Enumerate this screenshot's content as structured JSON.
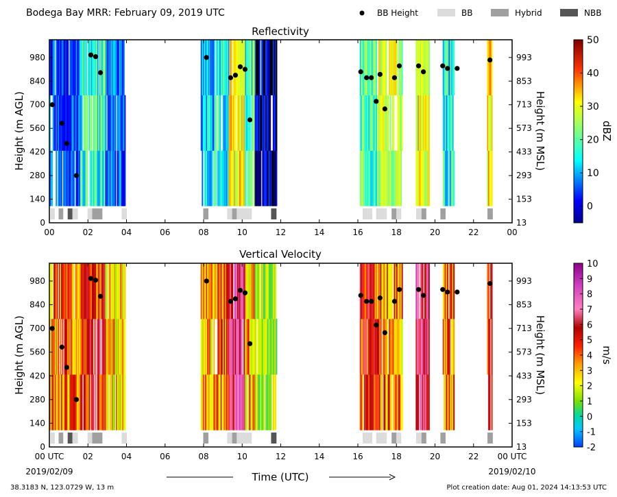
{
  "header": {
    "title": "Bodega Bay MRR:  February 09, 2019 UTC",
    "legend": [
      {
        "label": "BB Height",
        "kind": "dot",
        "color": "#000000"
      },
      {
        "label": "BB",
        "kind": "box",
        "color": "#dcdcdc"
      },
      {
        "label": "Hybrid",
        "kind": "box",
        "color": "#a0a0a0"
      },
      {
        "label": "NBB",
        "kind": "box",
        "color": "#555555"
      }
    ]
  },
  "footer": {
    "location": "38.3183 N, 123.0729 W, 13 m",
    "creation": "Plot creation date: Aug 01, 2024 14:13:53 UTC",
    "start_date": "2019/02/09",
    "end_date": "2019/02/10",
    "time_axis_label": "Time (UTC)"
  },
  "chart_data": [
    {
      "type": "heatmap",
      "title": "Reflectivity",
      "xlabel": "",
      "ylabel": "Height (m AGL)",
      "ylabel_right": "Height (m MSL)",
      "x_ticks": [
        "00",
        "02",
        "04",
        "06",
        "08",
        "10",
        "12",
        "14",
        "16",
        "18",
        "20",
        "22",
        "00"
      ],
      "xlim_hours": [
        0,
        24
      ],
      "y_ticks": [
        0,
        140,
        280,
        420,
        560,
        700,
        840,
        980
      ],
      "y_ticks_right": [
        "13",
        "153",
        "293",
        "433",
        "573",
        "713",
        "853",
        "993"
      ],
      "ylim": [
        0,
        1085
      ],
      "colorbar": {
        "label": "dBZ",
        "range": [
          -5,
          50
        ],
        "ticks": [
          0,
          10,
          20,
          30,
          40,
          50
        ],
        "colormap": "jet"
      },
      "data_height_range": [
        100,
        1085
      ],
      "precip_periods": [
        {
          "start": 0.0,
          "end": 1.6,
          "level": 3
        },
        {
          "start": 1.6,
          "end": 2.9,
          "level": 16
        },
        {
          "start": 2.9,
          "end": 3.9,
          "level": 5
        },
        {
          "start": 7.85,
          "end": 8.55,
          "level": 10
        },
        {
          "start": 8.55,
          "end": 9.3,
          "level": 14
        },
        {
          "start": 9.3,
          "end": 10.15,
          "level": 30
        },
        {
          "start": 10.15,
          "end": 10.65,
          "level": 16
        },
        {
          "start": 10.65,
          "end": 11.8,
          "level": -2
        },
        {
          "start": 16.1,
          "end": 17.0,
          "level": 18
        },
        {
          "start": 17.0,
          "end": 18.3,
          "level": 24
        },
        {
          "start": 19.0,
          "end": 19.7,
          "level": 28
        },
        {
          "start": 20.4,
          "end": 21.0,
          "level": 14
        },
        {
          "start": 22.7,
          "end": 22.95,
          "level": 30
        }
      ]
    },
    {
      "type": "heatmap",
      "title": "Vertical Velocity",
      "xlabel": "Time (UTC)",
      "ylabel": "Height (m AGL)",
      "ylabel_right": "Height (m MSL)",
      "x_ticks": [
        "00 UTC",
        "02",
        "04",
        "06",
        "08",
        "10",
        "12",
        "14",
        "16",
        "18",
        "20",
        "22",
        "00 UTC"
      ],
      "xlim_hours": [
        0,
        24
      ],
      "y_ticks": [
        0,
        140,
        280,
        420,
        560,
        700,
        840,
        980
      ],
      "y_ticks_right": [
        "13",
        "153",
        "293",
        "433",
        "573",
        "713",
        "853",
        "993"
      ],
      "ylim": [
        0,
        1085
      ],
      "colorbar": {
        "label": "m/s",
        "range": [
          -2,
          10
        ],
        "ticks": [
          -2,
          -1,
          0,
          1,
          2,
          3,
          4,
          5,
          6,
          7,
          8,
          9,
          10
        ],
        "colormap": "custom"
      },
      "data_height_range": [
        100,
        1085
      ],
      "precip_periods": [
        {
          "start": 0.0,
          "end": 1.6,
          "level": 4
        },
        {
          "start": 1.6,
          "end": 2.9,
          "level": 5.5
        },
        {
          "start": 2.9,
          "end": 3.9,
          "level": 3
        },
        {
          "start": 7.85,
          "end": 8.55,
          "level": 3.5
        },
        {
          "start": 8.55,
          "end": 9.3,
          "level": 4.5
        },
        {
          "start": 9.3,
          "end": 10.15,
          "level": 7.5
        },
        {
          "start": 10.15,
          "end": 10.65,
          "level": 3.5
        },
        {
          "start": 10.65,
          "end": 11.8,
          "level": 1.5
        },
        {
          "start": 16.1,
          "end": 17.0,
          "level": 5.5
        },
        {
          "start": 17.0,
          "end": 18.3,
          "level": 4.0
        },
        {
          "start": 19.0,
          "end": 19.7,
          "level": 7.0
        },
        {
          "start": 20.4,
          "end": 21.0,
          "level": 4.0
        },
        {
          "start": 22.7,
          "end": 22.95,
          "level": 5.5
        }
      ]
    }
  ],
  "bright_band": {
    "height_points": [
      {
        "t": 0.15,
        "h": 700
      },
      {
        "t": 0.65,
        "h": 590
      },
      {
        "t": 0.9,
        "h": 470
      },
      {
        "t": 1.4,
        "h": 280
      },
      {
        "t": 2.15,
        "h": 995
      },
      {
        "t": 2.4,
        "h": 985
      },
      {
        "t": 2.65,
        "h": 890
      },
      {
        "t": 8.15,
        "h": 980
      },
      {
        "t": 9.4,
        "h": 860
      },
      {
        "t": 9.65,
        "h": 875
      },
      {
        "t": 9.9,
        "h": 925
      },
      {
        "t": 10.15,
        "h": 910
      },
      {
        "t": 10.4,
        "h": 610
      },
      {
        "t": 16.15,
        "h": 895
      },
      {
        "t": 16.45,
        "h": 860
      },
      {
        "t": 16.7,
        "h": 860
      },
      {
        "t": 16.95,
        "h": 720
      },
      {
        "t": 17.15,
        "h": 880
      },
      {
        "t": 17.4,
        "h": 675
      },
      {
        "t": 17.9,
        "h": 860
      },
      {
        "t": 18.15,
        "h": 930
      },
      {
        "t": 19.15,
        "h": 930
      },
      {
        "t": 19.4,
        "h": 895
      },
      {
        "t": 20.4,
        "h": 930
      },
      {
        "t": 20.65,
        "h": 915
      },
      {
        "t": 21.15,
        "h": 915
      },
      {
        "t": 22.85,
        "h": 965
      }
    ],
    "classification": [
      {
        "start": 0.05,
        "end": 0.28,
        "type": "BB"
      },
      {
        "start": 0.48,
        "end": 0.72,
        "type": "Hybrid"
      },
      {
        "start": 0.95,
        "end": 1.2,
        "type": "NBB"
      },
      {
        "start": 1.2,
        "end": 1.48,
        "type": "BB"
      },
      {
        "start": 1.98,
        "end": 2.22,
        "type": "BB"
      },
      {
        "start": 2.22,
        "end": 2.75,
        "type": "Hybrid"
      },
      {
        "start": 3.75,
        "end": 4.02,
        "type": "BB"
      },
      {
        "start": 7.98,
        "end": 8.25,
        "type": "Hybrid"
      },
      {
        "start": 9.22,
        "end": 9.48,
        "type": "BB"
      },
      {
        "start": 9.48,
        "end": 9.72,
        "type": "Hybrid"
      },
      {
        "start": 9.72,
        "end": 10.5,
        "type": "BB"
      },
      {
        "start": 11.5,
        "end": 11.78,
        "type": "NBB"
      },
      {
        "start": 16.25,
        "end": 16.75,
        "type": "BB"
      },
      {
        "start": 16.95,
        "end": 17.5,
        "type": "BB"
      },
      {
        "start": 17.75,
        "end": 18.0,
        "type": "Hybrid"
      },
      {
        "start": 18.0,
        "end": 18.25,
        "type": "BB"
      },
      {
        "start": 19.02,
        "end": 19.3,
        "type": "BB"
      },
      {
        "start": 19.3,
        "end": 19.55,
        "type": "Hybrid"
      },
      {
        "start": 20.28,
        "end": 20.55,
        "type": "Hybrid"
      },
      {
        "start": 22.72,
        "end": 23.0,
        "type": "Hybrid"
      }
    ]
  }
}
